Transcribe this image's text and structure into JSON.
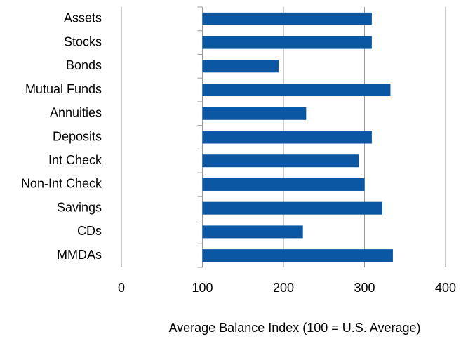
{
  "chart_data": {
    "type": "barh",
    "categories": [
      "Assets",
      "Stocks",
      "Bonds",
      "Mutual Funds",
      "Annuities",
      "Deposits",
      "Int Check",
      "Non-Int Check",
      "Savings",
      "CDs",
      "MMDAs"
    ],
    "values": [
      309,
      309,
      194,
      332,
      228,
      309,
      293,
      300,
      322,
      224,
      335
    ],
    "color": "#0b57a4",
    "baseline": 100,
    "xlim": [
      0,
      400
    ],
    "xticks": [
      0,
      100,
      200,
      300,
      400
    ],
    "grid": true,
    "xlabel": "Average Balance Index (100 = U.S. Average)"
  }
}
